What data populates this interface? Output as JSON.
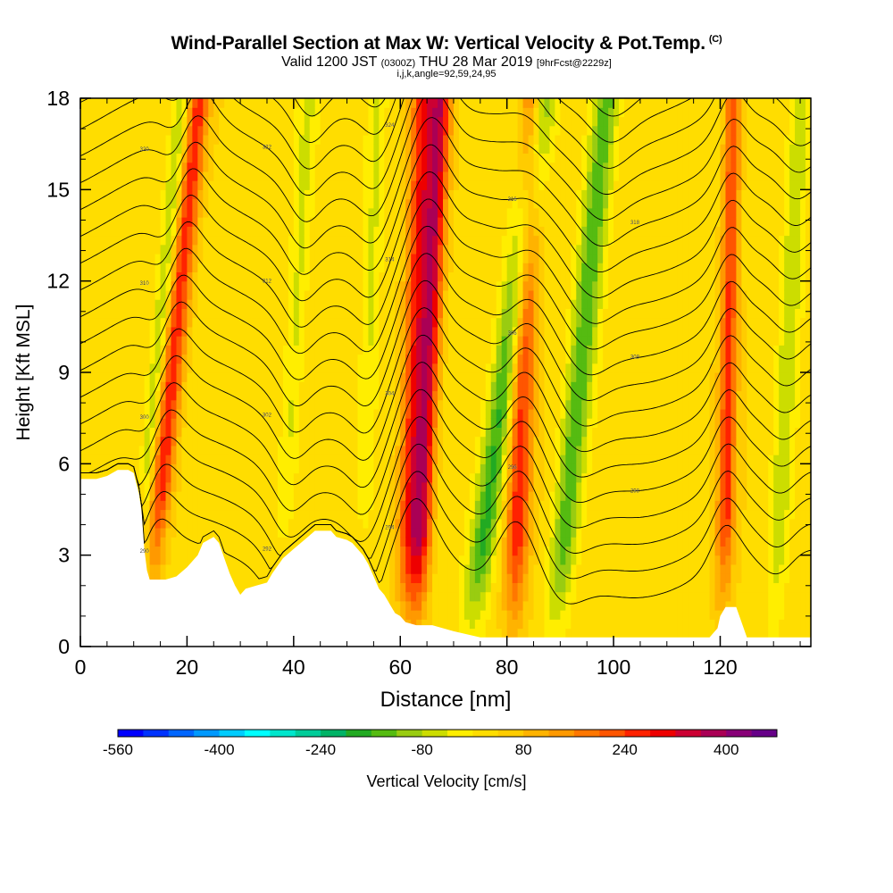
{
  "header": {
    "title": "Wind-Parallel Section at Max W: Vertical Velocity & Pot.Temp.",
    "copyright": "(C)",
    "valid_prefix": "Valid 1200 JST",
    "valid_utc": "(0300Z)",
    "valid_date": "THU 28 Mar 2019",
    "forecast": "[9hrFcst@2229z]",
    "params": "i,j,k,angle=92,59,24,95"
  },
  "chart_data": {
    "type": "heatmap",
    "title": "Wind-Parallel Section at Max W: Vertical Velocity & Pot.Temp.",
    "xlabel": "Distance [nm]",
    "ylabel": "Height [Kft MSL]",
    "xlim": [
      0,
      137
    ],
    "ylim": [
      0,
      18
    ],
    "x_ticks": [
      0,
      20,
      40,
      60,
      80,
      100,
      120
    ],
    "y_ticks": [
      0,
      3,
      6,
      9,
      12,
      15,
      18
    ],
    "colorbar": {
      "label": "Vertical Velocity [cm/s]",
      "range": [
        -560,
        480
      ],
      "tick_values": [
        -560,
        -400,
        -240,
        -80,
        80,
        240,
        400
      ],
      "colors": [
        "#0000ff",
        "#0033ff",
        "#0066ff",
        "#0099ff",
        "#00ccff",
        "#00ffff",
        "#00e6cc",
        "#00cc99",
        "#00b366",
        "#22aa22",
        "#55bb11",
        "#99cc11",
        "#ccdd00",
        "#ffee00",
        "#ffdd00",
        "#ffcc00",
        "#ffb300",
        "#ff9900",
        "#ff7700",
        "#ff5500",
        "#ff2200",
        "#ee0000",
        "#cc0033",
        "#aa0055",
        "#880077",
        "#660088"
      ]
    },
    "vertical_velocity_features": [
      {
        "x": 11.5,
        "half_width": 1.6,
        "w": -110,
        "tilt": 0.55
      },
      {
        "x": 14.5,
        "half_width": 2.0,
        "w": 240,
        "tilt": 0.55
      },
      {
        "x": 38.5,
        "half_width": 1.8,
        "w": -70,
        "tilt": 0.3
      },
      {
        "x": 53,
        "half_width": 1.8,
        "w": -70,
        "tilt": 0.2
      },
      {
        "x": 61.5,
        "half_width": 2.2,
        "w": 230,
        "tilt": 0.2
      },
      {
        "x": 64,
        "half_width": 2.0,
        "w": 300,
        "tilt": 0.25
      },
      {
        "x": 76,
        "half_width": 2.5,
        "w": -200,
        "tilt": 0.75
      },
      {
        "x": 82,
        "half_width": 2.2,
        "w": 230,
        "tilt": 0.2
      },
      {
        "x": 91,
        "half_width": 2.5,
        "w": -180,
        "tilt": 0.55
      },
      {
        "x": 121,
        "half_width": 1.6,
        "w": 220,
        "tilt": 0.1
      },
      {
        "x": 131,
        "half_width": 2.0,
        "w": -100,
        "tilt": 0.3
      }
    ],
    "isentropes_kelvin": [
      290,
      292,
      294,
      296,
      298,
      300,
      302,
      304,
      306,
      308,
      310,
      312,
      314,
      316,
      318,
      320,
      322,
      324,
      326,
      328
    ],
    "terrain_height_kft": [
      [
        0,
        5.5
      ],
      [
        3,
        5.5
      ],
      [
        5,
        5.6
      ],
      [
        7,
        5.8
      ],
      [
        9,
        5.8
      ],
      [
        10,
        5.7
      ],
      [
        11,
        5.0
      ],
      [
        11.5,
        4.4
      ],
      [
        12,
        3.2
      ],
      [
        12.5,
        2.5
      ],
      [
        13,
        2.2
      ],
      [
        16,
        2.2
      ],
      [
        18,
        2.3
      ],
      [
        20,
        2.6
      ],
      [
        22,
        3.0
      ],
      [
        23,
        3.4
      ],
      [
        25,
        3.6
      ],
      [
        26,
        3.4
      ],
      [
        27,
        2.9
      ],
      [
        28,
        2.4
      ],
      [
        29,
        2.0
      ],
      [
        30,
        1.7
      ],
      [
        31,
        1.9
      ],
      [
        33,
        2.0
      ],
      [
        35,
        2.1
      ],
      [
        36,
        2.4
      ],
      [
        38,
        2.9
      ],
      [
        40,
        3.2
      ],
      [
        42,
        3.5
      ],
      [
        44,
        3.8
      ],
      [
        47,
        3.8
      ],
      [
        48,
        3.6
      ],
      [
        50,
        3.5
      ],
      [
        51,
        3.4
      ],
      [
        53,
        3.0
      ],
      [
        54,
        2.7
      ],
      [
        55,
        2.3
      ],
      [
        56,
        1.9
      ],
      [
        57,
        1.7
      ],
      [
        58,
        1.4
      ],
      [
        59,
        1.1
      ],
      [
        60,
        1.0
      ],
      [
        61,
        0.8
      ],
      [
        63,
        0.7
      ],
      [
        66,
        0.7
      ],
      [
        70,
        0.5
      ],
      [
        75,
        0.3
      ],
      [
        80,
        0.3
      ],
      [
        90,
        0.3
      ],
      [
        100,
        0.3
      ],
      [
        110,
        0.3
      ],
      [
        118,
        0.3
      ],
      [
        119.5,
        0.6
      ],
      [
        120,
        1.0
      ],
      [
        121,
        1.3
      ],
      [
        123,
        1.3
      ],
      [
        124,
        0.8
      ],
      [
        125,
        0.3
      ],
      [
        137,
        0.3
      ]
    ]
  }
}
